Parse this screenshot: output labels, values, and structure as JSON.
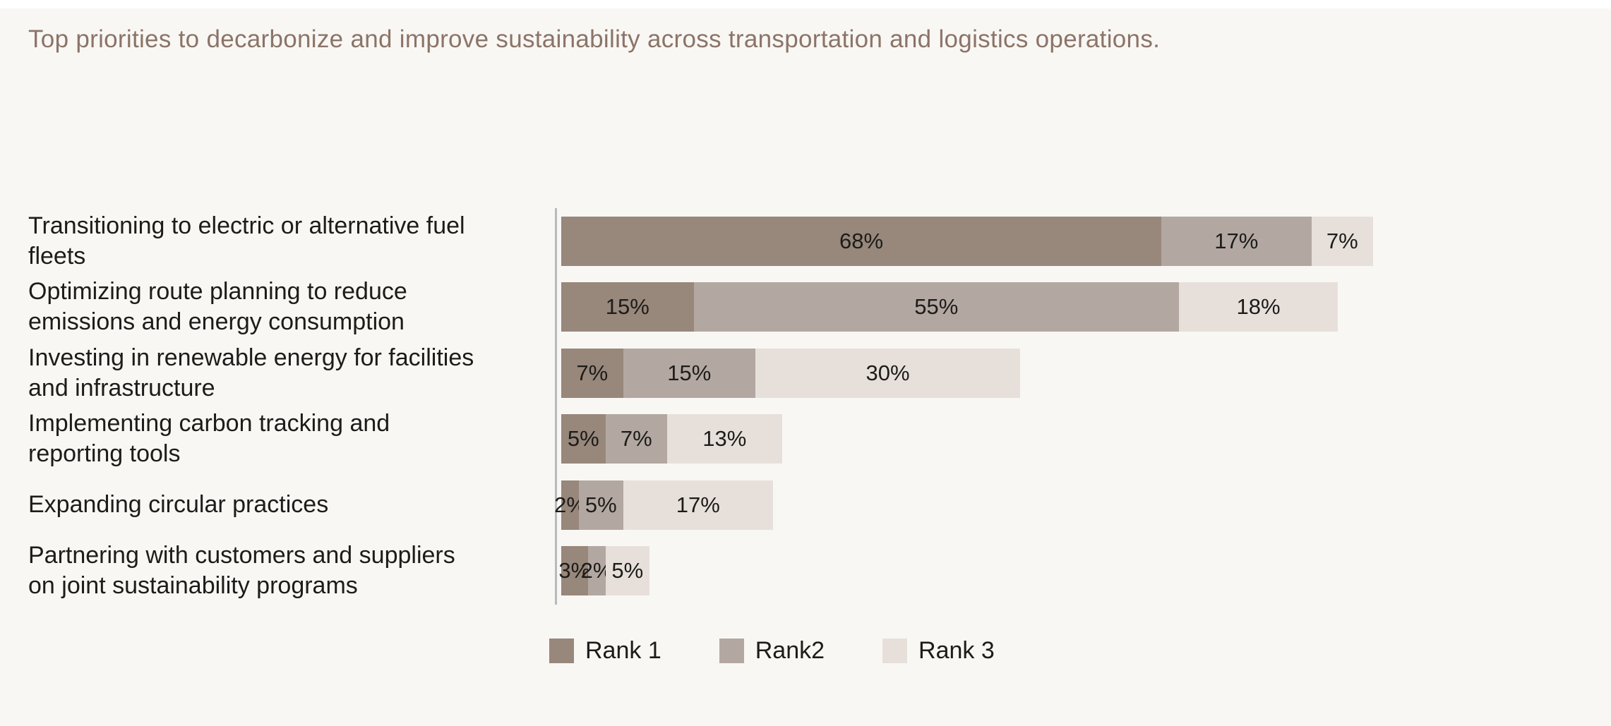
{
  "title": "Top priorities to decarbonize and improve sustainability across transportation and logistics operations.",
  "colors": {
    "background": "#f9f7f4",
    "top_strip": "#ffffff",
    "title_text": "#8b7468",
    "label_text": "#1c1c1a",
    "axis_line": "#b7bbbd",
    "rank1": "#98877b",
    "rank2": "#b3a8a1",
    "rank3": "#e7e0da"
  },
  "chart_data": {
    "type": "bar",
    "orientation": "horizontal",
    "stacked": true,
    "unit": "%",
    "title": "Top priorities to decarbonize and improve sustainability across transportation and logistics operations.",
    "categories": [
      "Transitioning to electric or alternative fuel\nfleets",
      "Optimizing route planning to reduce\nemissions and energy consumption",
      "Investing in renewable energy for facilities\nand infrastructure",
      "Implementing carbon tracking and\nreporting tools",
      "Expanding circular practices",
      "Partnering with customers and suppliers\non joint sustainability programs"
    ],
    "series": [
      {
        "name": "Rank 1",
        "color": "#98877b",
        "values": [
          68,
          15,
          7,
          5,
          2,
          3
        ]
      },
      {
        "name": "Rank2",
        "color": "#b3a8a1",
        "values": [
          17,
          55,
          15,
          7,
          5,
          2
        ]
      },
      {
        "name": "Rank 3",
        "color": "#e7e0da",
        "values": [
          7,
          18,
          30,
          13,
          17,
          5
        ]
      }
    ],
    "value_label_format": "{v}%",
    "xlim": [
      0,
      100
    ],
    "grid": false,
    "legend_position": "bottom"
  }
}
